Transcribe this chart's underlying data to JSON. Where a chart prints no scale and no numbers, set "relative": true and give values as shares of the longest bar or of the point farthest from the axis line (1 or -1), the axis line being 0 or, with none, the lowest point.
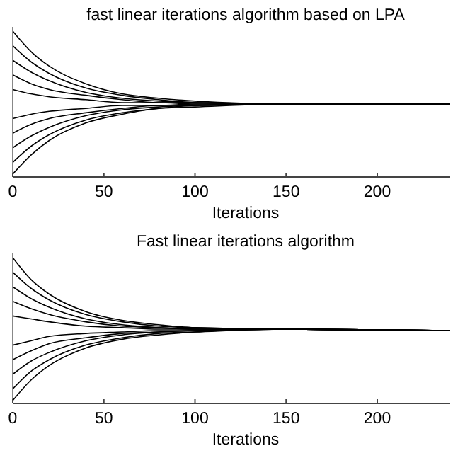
{
  "chart_data": [
    {
      "type": "line",
      "title": "fast linear iterations algorithm based on LPA",
      "xlabel": "Iterations",
      "relative": true,
      "tick_labels": "x",
      "xlim": [
        0,
        240
      ],
      "xticks": [
        0,
        50,
        100,
        150,
        200
      ],
      "x": [
        0,
        10,
        20,
        40,
        60,
        80,
        100,
        150,
        240
      ],
      "series": [
        {
          "color": "#000000",
          "values": [
            1,
            0.86,
            0.76,
            0.64,
            0.57,
            0.54,
            0.52,
            0.5,
            0.5
          ]
        },
        {
          "color": "#000000",
          "values": [
            0.9,
            0.79,
            0.71,
            0.61,
            0.56,
            0.53,
            0.51,
            0.5,
            0.5
          ]
        },
        {
          "color": "#000000",
          "values": [
            0.8,
            0.72,
            0.66,
            0.58,
            0.54,
            0.52,
            0.51,
            0.5,
            0.5
          ]
        },
        {
          "color": "#000000",
          "values": [
            0.7,
            0.64,
            0.6,
            0.56,
            0.53,
            0.51,
            0.51,
            0.5,
            0.5
          ]
        },
        {
          "color": "#000000",
          "values": [
            0.6,
            0.57,
            0.55,
            0.53,
            0.51,
            0.51,
            0.5,
            0.5,
            0.5
          ]
        },
        {
          "color": "#000000",
          "values": [
            0.4,
            0.43,
            0.45,
            0.47,
            0.49,
            0.49,
            0.5,
            0.5,
            0.5
          ]
        },
        {
          "color": "#000000",
          "values": [
            0.3,
            0.36,
            0.4,
            0.44,
            0.47,
            0.49,
            0.49,
            0.5,
            0.5
          ]
        },
        {
          "color": "#000000",
          "values": [
            0.2,
            0.28,
            0.34,
            0.42,
            0.46,
            0.48,
            0.49,
            0.5,
            0.5
          ]
        },
        {
          "color": "#000000",
          "values": [
            0.1,
            0.21,
            0.29,
            0.39,
            0.44,
            0.47,
            0.49,
            0.5,
            0.5
          ]
        },
        {
          "color": "#000000",
          "values": [
            0.02,
            0.15,
            0.25,
            0.37,
            0.43,
            0.47,
            0.48,
            0.5,
            0.5
          ]
        }
      ]
    },
    {
      "type": "line",
      "title": "Fast linear iterations algorithm",
      "xlabel": "Iterations",
      "relative": true,
      "tick_labels": "x",
      "xlim": [
        0,
        240
      ],
      "xticks": [
        0,
        50,
        100,
        150,
        200
      ],
      "x": [
        0,
        10,
        20,
        40,
        60,
        80,
        100,
        150,
        240
      ],
      "series": [
        {
          "color": "#000000",
          "values": [
            1,
            0.85,
            0.75,
            0.63,
            0.57,
            0.54,
            0.52,
            0.51,
            0.5
          ]
        },
        {
          "color": "#000000",
          "values": [
            0.9,
            0.79,
            0.71,
            0.61,
            0.56,
            0.53,
            0.52,
            0.51,
            0.5
          ]
        },
        {
          "color": "#000000",
          "values": [
            0.8,
            0.72,
            0.66,
            0.58,
            0.54,
            0.52,
            0.51,
            0.51,
            0.5
          ]
        },
        {
          "color": "#000000",
          "values": [
            0.7,
            0.65,
            0.61,
            0.56,
            0.53,
            0.52,
            0.51,
            0.51,
            0.5
          ]
        },
        {
          "color": "#000000",
          "values": [
            0.6,
            0.58,
            0.56,
            0.53,
            0.52,
            0.51,
            0.51,
            0.51,
            0.5
          ]
        },
        {
          "color": "#000000",
          "values": [
            0.4,
            0.43,
            0.46,
            0.48,
            0.49,
            0.5,
            0.5,
            0.51,
            0.5
          ]
        },
        {
          "color": "#000000",
          "values": [
            0.3,
            0.36,
            0.41,
            0.45,
            0.48,
            0.49,
            0.5,
            0.51,
            0.5
          ]
        },
        {
          "color": "#000000",
          "values": [
            0.2,
            0.29,
            0.35,
            0.43,
            0.47,
            0.49,
            0.5,
            0.51,
            0.5
          ]
        },
        {
          "color": "#000000",
          "values": [
            0.1,
            0.22,
            0.3,
            0.4,
            0.45,
            0.48,
            0.49,
            0.51,
            0.5
          ]
        },
        {
          "color": "#000000",
          "values": [
            0.02,
            0.16,
            0.26,
            0.38,
            0.44,
            0.47,
            0.49,
            0.51,
            0.5
          ]
        }
      ]
    }
  ]
}
